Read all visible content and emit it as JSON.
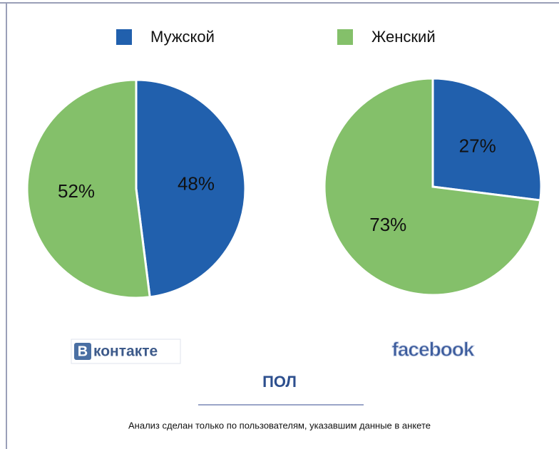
{
  "chart_data": [
    {
      "type": "pie",
      "logo_mark": "В",
      "logo_text": "контакте",
      "categories": [
        "Мужской",
        "Женский"
      ],
      "values": [
        48,
        52
      ],
      "value_labels": [
        "48%",
        "52%"
      ],
      "colors": [
        "#2160ad",
        "#84c06a"
      ]
    },
    {
      "type": "pie",
      "logo_text": "facebook",
      "categories": [
        "Мужской",
        "Женский"
      ],
      "values": [
        27,
        73
      ],
      "value_labels": [
        "27%",
        "73%"
      ],
      "colors": [
        "#2160ad",
        "#84c06a"
      ]
    }
  ],
  "title": "ПОЛ",
  "note": "Анализ сделан только по пользователям, указавшим данные в анкете"
}
